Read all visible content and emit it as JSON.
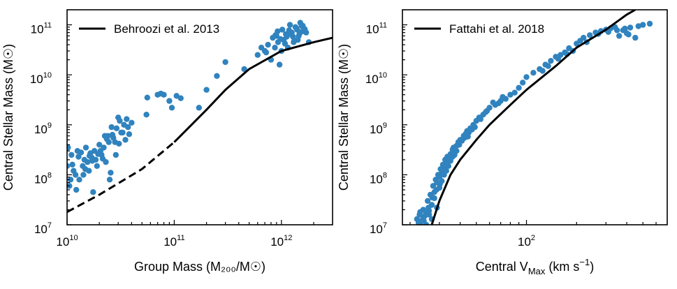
{
  "chart_data": [
    {
      "type": "scatter",
      "id": "left",
      "xscale": "log",
      "yscale": "log",
      "xlim": [
        10000000000.0,
        3000000000000.0
      ],
      "ylim": [
        10000000.0,
        200000000000.0
      ],
      "xlabel": "Group Mass (M₂₀₀/M☉)",
      "ylabel": "Central Stellar Mass (M☉)",
      "xticks": [
        10000000000.0,
        100000000000.0,
        1000000000000.0
      ],
      "xtick_labels": [
        {
          "base": "10",
          "exp": "10"
        },
        {
          "base": "10",
          "exp": "11"
        },
        {
          "base": "10",
          "exp": "12"
        }
      ],
      "yticks": [
        10000000.0,
        100000000.0,
        1000000000.0,
        10000000000.0,
        100000000000.0
      ],
      "ytick_labels": [
        {
          "base": "10",
          "exp": "7"
        },
        {
          "base": "10",
          "exp": "8"
        },
        {
          "base": "10",
          "exp": "9"
        },
        {
          "base": "10",
          "exp": "10"
        },
        {
          "base": "10",
          "exp": "11"
        }
      ],
      "legend": {
        "label": "Behroozi et al. 2013",
        "location": "upper-left"
      },
      "line": {
        "name": "Behroozi et al. 2013",
        "dashed_until_x": 100000000000.0,
        "x": [
          10000000000.0,
          20000000000.0,
          50000000000.0,
          100000000000.0,
          200000000000.0,
          300000000000.0,
          500000000000.0,
          1000000000000.0,
          2000000000000.0,
          3000000000000.0
        ],
        "y": [
          18000000.0,
          40000000.0,
          130000000.0,
          450000000.0,
          2000000000.0,
          5000000000.0,
          13000000000.0,
          30000000000.0,
          45000000000.0,
          55000000000.0
        ]
      },
      "points": {
        "name": "Groups",
        "x": [
          10000000000.0,
          10500000000.0,
          11000000000.0,
          12000000000.0,
          12500000000.0,
          13000000000.0,
          14000000000.0,
          14500000000.0,
          15000000000.0,
          16000000000.0,
          17000000000.0,
          17500000000.0,
          18000000000.0,
          19000000000.0,
          20000000000.0,
          21000000000.0,
          22000000000.0,
          23000000000.0,
          24000000000.0,
          25000000000.0,
          26000000000.0,
          28000000000.0,
          30000000000.0,
          32000000000.0,
          34000000000.0,
          36000000000.0,
          38000000000.0,
          40000000000.0,
          10200000000.0,
          11500000000.0,
          13500000000.0,
          15500000000.0,
          16500000000.0,
          18500000000.0,
          20500000000.0,
          22500000000.0,
          24500000000.0,
          27000000000.0,
          29000000000.0,
          31000000000.0,
          33000000000.0,
          35000000000.0,
          37000000000.0,
          10800000000.0,
          12200000000.0,
          14200000000.0,
          16200000000.0,
          19500000000.0,
          21500000000.0,
          25500000000.0,
          28500000000.0,
          30500000000.0,
          11200000000.0,
          12800000000.0,
          14800000000.0,
          17200000000.0,
          23500000000.0,
          26500000000.0,
          55000000000.0,
          56000000000.0,
          70000000000.0,
          75000000000.0,
          80000000000.0,
          90000000000.0,
          95000000000.0,
          105000000000.0,
          115000000000.0,
          170000000000.0,
          200000000000.0,
          250000000000.0,
          300000000000.0,
          450000000000.0,
          600000000000.0,
          650000000000.0,
          700000000000.0,
          750000000000.0,
          800000000000.0,
          830000000000.0,
          870000000000.0,
          900000000000.0,
          930000000000.0,
          960000000000.0,
          1000000000000.0,
          1020000000000.0,
          1050000000000.0,
          1100000000000.0,
          1150000000000.0,
          1200000000000.0,
          1250000000000.0,
          1300000000000.0,
          1350000000000.0,
          1400000000000.0,
          1450000000000.0,
          1500000000000.0,
          1550000000000.0,
          1600000000000.0,
          1700000000000.0,
          1800000000000.0,
          720000000000.0,
          980000000000.0,
          1080000000000.0,
          1180000000000.0,
          1280000000000.0,
          1380000000000.0,
          1480000000000.0,
          1580000000000.0,
          1650000000000.0,
          880000000000.0,
          1120000000000.0,
          1320000000000.0,
          1520000000000.0,
          920000000000.0,
          1220000000000.0,
          1420000000000.0
        ],
        "y": [
          150000000.0,
          60000000.0,
          250000000.0,
          100000000.0,
          300000000.0,
          80000000.0,
          150000000.0,
          200000000.0,
          350000000.0,
          120000000.0,
          220000000.0,
          45000000.0,
          300000000.0,
          150000000.0,
          400000000.0,
          250000000.0,
          350000000.0,
          180000000.0,
          600000000.0,
          80000000.0,
          900000000.0,
          450000000.0,
          1400000000.0,
          700000000.0,
          1000000000.0,
          1300000000.0,
          650000000.0,
          1100000000.0,
          350000000.0,
          120000000.0,
          280000000.0,
          180000000.0,
          270000000.0,
          200000000.0,
          300000000.0,
          600000000.0,
          450000000.0,
          550000000.0,
          850000000.0,
          1200000000.0,
          700000000.0,
          500000000.0,
          900000000.0,
          80000000.0,
          50000000.0,
          100000000.0,
          240000000.0,
          260000000.0,
          210000000.0,
          110000000.0,
          250000000.0,
          420000000.0,
          160000000.0,
          230000000.0,
          130000000.0,
          190000000.0,
          520000000.0,
          630000000.0,
          1600000000.0,
          3500000000.0,
          4000000000.0,
          4200000000.0,
          4000000000.0,
          3000000000.0,
          2200000000.0,
          3800000000.0,
          3400000000.0,
          2200000000.0,
          5000000000.0,
          9500000000.0,
          18000000000.0,
          13000000000.0,
          25000000000.0,
          35000000000.0,
          30000000000.0,
          40000000000.0,
          20000000000.0,
          55000000000.0,
          35000000000.0,
          60000000000.0,
          45000000000.0,
          16000000000.0,
          30000000000.0,
          80000000000.0,
          50000000000.0,
          65000000000.0,
          35000000000.0,
          100000000000.0,
          70000000000.0,
          45000000000.0,
          90000000000.0,
          80000000000.0,
          60000000000.0,
          110000000000.0,
          95000000000.0,
          75000000000.0,
          70000000000.0,
          45000000000.0,
          28000000000.0,
          52000000000.0,
          42000000000.0,
          78000000000.0,
          58000000000.0,
          86000000000.0,
          68000000000.0,
          96000000000.0,
          82000000000.0,
          62000000000.0,
          58000000000.0,
          48000000000.0,
          72000000000.0,
          74000000000.0,
          66000000000.0,
          50000000000.0
        ]
      }
    },
    {
      "type": "scatter",
      "id": "right",
      "xscale": "log",
      "yscale": "log",
      "xlim": [
        18,
        700
      ],
      "ylim": [
        10000000.0,
        200000000000.0
      ],
      "xlabel_parts": {
        "prefix": "Central V",
        "subscript": "Max",
        "suffix": " (km s",
        "superscript": "−1",
        "close": ")"
      },
      "ylabel": "Central Stellar Mass (M☉)",
      "xticks": [
        100
      ],
      "xtick_labels": [
        {
          "base": "10",
          "exp": "2"
        }
      ],
      "yticks": [
        10000000.0,
        100000000.0,
        1000000000.0,
        10000000000.0,
        100000000000.0
      ],
      "ytick_labels": [
        {
          "base": "10",
          "exp": "7"
        },
        {
          "base": "10",
          "exp": "8"
        },
        {
          "base": "10",
          "exp": "9"
        },
        {
          "base": "10",
          "exp": "10"
        },
        {
          "base": "10",
          "exp": "11"
        }
      ],
      "legend": {
        "label": "Fattahi et al. 2018",
        "location": "upper-left"
      },
      "line": {
        "name": "Fattahi et al. 2018",
        "x": [
          27,
          30,
          35,
          40,
          50,
          60,
          80,
          100,
          150,
          200,
          300,
          400,
          450
        ],
        "y": [
          10000000.0,
          30000000.0,
          100000000.0,
          200000000.0,
          500000000.0,
          1000000000.0,
          2500000000.0,
          5000000000.0,
          15000000000.0,
          35000000000.0,
          80000000000.0,
          160000000000.0,
          200000000000.0
        ]
      },
      "points": {
        "name": "Centrals",
        "x": [
          22,
          22.5,
          23,
          23.5,
          24,
          24.5,
          25,
          25.5,
          26,
          26.5,
          27,
          27.5,
          28,
          28.5,
          29,
          29.5,
          30,
          30.5,
          31,
          31.5,
          32,
          32.5,
          33,
          33.5,
          34,
          35,
          36,
          37,
          38,
          39,
          40,
          41,
          42,
          43,
          44,
          45,
          46,
          48,
          50,
          52,
          55,
          58,
          60,
          65,
          70,
          75,
          80,
          85,
          90,
          95,
          100,
          110,
          120,
          130,
          140,
          150,
          160,
          170,
          180,
          200,
          210,
          220,
          240,
          260,
          280,
          300,
          320,
          340,
          360,
          380,
          400,
          420,
          450,
          500,
          550,
          23,
          24,
          25,
          26,
          27,
          28,
          29,
          30,
          31,
          32,
          33,
          34,
          35,
          36,
          37,
          38,
          22.8,
          24.2,
          25.8,
          27.2,
          28.8,
          30.2,
          31.8,
          33.2,
          36.5,
          39.5,
          42.5,
          44.5,
          47,
          49,
          53,
          57,
          63,
          68,
          72,
          125,
          135,
          155,
          175,
          190,
          230,
          270,
          310,
          350,
          390,
          410,
          470
        ],
        "y": [
          13000000.0,
          11000000.0,
          18000000.0,
          12000000.0,
          20000000.0,
          15000000.0,
          17000000.0,
          30000000.0,
          16000000.0,
          40000000.0,
          25000000.0,
          60000000.0,
          45000000.0,
          80000000.0,
          70000000.0,
          100000000.0,
          90000000.0,
          130000000.0,
          110000000.0,
          160000000.0,
          140000000.0,
          200000000.0,
          180000000.0,
          230000000.0,
          210000000.0,
          260000000.0,
          320000000.0,
          280000000.0,
          380000000.0,
          450000000.0,
          500000000.0,
          480000000.0,
          600000000.0,
          650000000.0,
          750000000.0,
          700000000.0,
          850000000.0,
          1000000000.0,
          1200000000.0,
          1400000000.0,
          1600000000.0,
          1900000000.0,
          2200000000.0,
          2500000000.0,
          3000000000.0,
          3300000000.0,
          4000000000.0,
          4400000000.0,
          5500000000.0,
          7000000000.0,
          9000000000.0,
          11000000000.0,
          13000000000.0,
          16000000000.0,
          19000000000.0,
          23000000000.0,
          25000000000.0,
          28000000000.0,
          34000000000.0,
          42000000000.0,
          48000000000.0,
          55000000000.0,
          62000000000.0,
          70000000000.0,
          75000000000.0,
          80000000000.0,
          85000000000.0,
          90000000000.0,
          60000000000.0,
          78000000000.0,
          68000000000.0,
          88000000000.0,
          55000000000.0,
          100000000000.0,
          105000000000.0,
          10000000.0,
          14000000.0,
          10000000.0,
          19000000.0,
          13000000.0,
          34000000.0,
          22000000.0,
          55000000.0,
          75000000.0,
          100000000.0,
          120000000.0,
          150000000.0,
          190000000.0,
          230000000.0,
          250000000.0,
          300000000.0,
          16000000.0,
          12000000.0,
          22000000.0,
          35000000.0,
          50000000.0,
          65000000.0,
          120000000.0,
          160000000.0,
          350000000.0,
          400000000.0,
          550000000.0,
          580000000.0,
          800000000.0,
          900000000.0,
          1300000000.0,
          1800000000.0,
          2800000000.0,
          2700000000.0,
          3600000000.0,
          12000000000.0,
          15000000000.0,
          21000000000.0,
          26000000000.0,
          30000000000.0,
          45000000000.0,
          66000000000.0,
          72000000000.0,
          78000000000.0,
          84000000000.0,
          64000000000.0,
          94000000000.0
        ]
      }
    }
  ]
}
